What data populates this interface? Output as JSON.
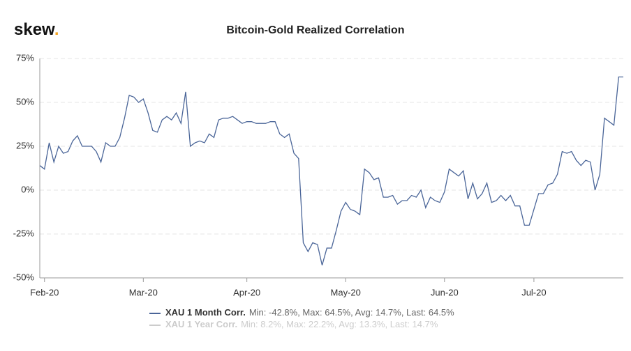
{
  "logo": "skew",
  "logo_dot": ".",
  "chart_data": {
    "type": "line",
    "title": "Bitcoin-Gold Realized Correlation",
    "categories": [
      null,
      "Feb-20",
      null,
      null,
      null,
      null,
      null,
      null,
      null,
      null,
      null,
      null,
      null,
      null,
      null,
      null,
      null,
      null,
      null,
      null,
      null,
      null,
      "Mar-20",
      null,
      null,
      null,
      null,
      null,
      null,
      null,
      null,
      null,
      null,
      null,
      null,
      null,
      null,
      null,
      null,
      null,
      null,
      null,
      null,
      null,
      "Apr-20",
      null,
      null,
      null,
      null,
      null,
      null,
      null,
      null,
      null,
      null,
      null,
      null,
      null,
      null,
      null,
      null,
      null,
      null,
      null,
      null,
      "May-20",
      null,
      null,
      null,
      null,
      null,
      null,
      null,
      null,
      null,
      null,
      null,
      null,
      null,
      null,
      null,
      null,
      null,
      null,
      null,
      null,
      "Jun-20",
      null,
      null,
      null,
      null,
      null,
      null,
      null,
      null,
      null,
      null,
      null,
      null,
      null,
      null,
      null,
      null,
      null,
      null,
      "Jul-20",
      null,
      null,
      null,
      null,
      null,
      null,
      null,
      null,
      null,
      null,
      null,
      null,
      null,
      null,
      null,
      null,
      null,
      null,
      null
    ],
    "series": [
      {
        "name": "XAU 1 Month Corr.",
        "stats": "Min: -42.8%, Max: 64.5%, Avg: 14.7%, Last: 64.5%",
        "color": "#4a6598",
        "values": [
          14,
          12,
          27,
          16,
          25,
          21,
          22,
          28,
          31,
          25,
          25,
          25,
          22,
          16,
          27,
          25,
          25,
          30,
          41,
          54,
          53,
          50,
          52,
          44,
          34,
          33,
          40,
          42,
          40,
          44,
          38,
          56,
          25,
          27,
          28,
          27,
          32,
          30,
          40,
          41,
          41,
          42,
          40,
          38,
          39,
          39,
          38,
          38,
          38,
          39,
          39,
          32,
          30,
          32,
          21,
          18,
          -30,
          -35,
          -30,
          -31,
          -42.8,
          -33,
          -33,
          -23,
          -12,
          -7,
          -11,
          -12,
          -14,
          12,
          10,
          6,
          7,
          -4,
          -4,
          -3,
          -8,
          -6,
          -6,
          -3,
          -4,
          0,
          -10,
          -4,
          -6,
          -7,
          -1,
          12,
          10,
          8,
          11,
          -5,
          4,
          -5,
          -2,
          4,
          -7,
          -6,
          -3,
          -6,
          -3,
          -9,
          -9,
          -20,
          -20,
          -11,
          -2,
          -2,
          3,
          4,
          9,
          22,
          21,
          22,
          17,
          14,
          17,
          16,
          0,
          9,
          41,
          39,
          37,
          64.5,
          64.5
        ]
      },
      {
        "name": "XAU 1 Year Corr.",
        "stats": "Min: 8.2%, Max: 22.2%, Avg: 13.3%, Last: 14.7%",
        "color": "#cccccc",
        "hidden": true
      }
    ],
    "ylim": [
      -50,
      75
    ],
    "yticks": [
      {
        "value": -50,
        "label": "-50%"
      },
      {
        "value": -25,
        "label": "-25%"
      },
      {
        "value": 0,
        "label": "0%"
      },
      {
        "value": 25,
        "label": "25%"
      },
      {
        "value": 50,
        "label": "50%"
      },
      {
        "value": 75,
        "label": "75%"
      }
    ],
    "grid": true
  }
}
